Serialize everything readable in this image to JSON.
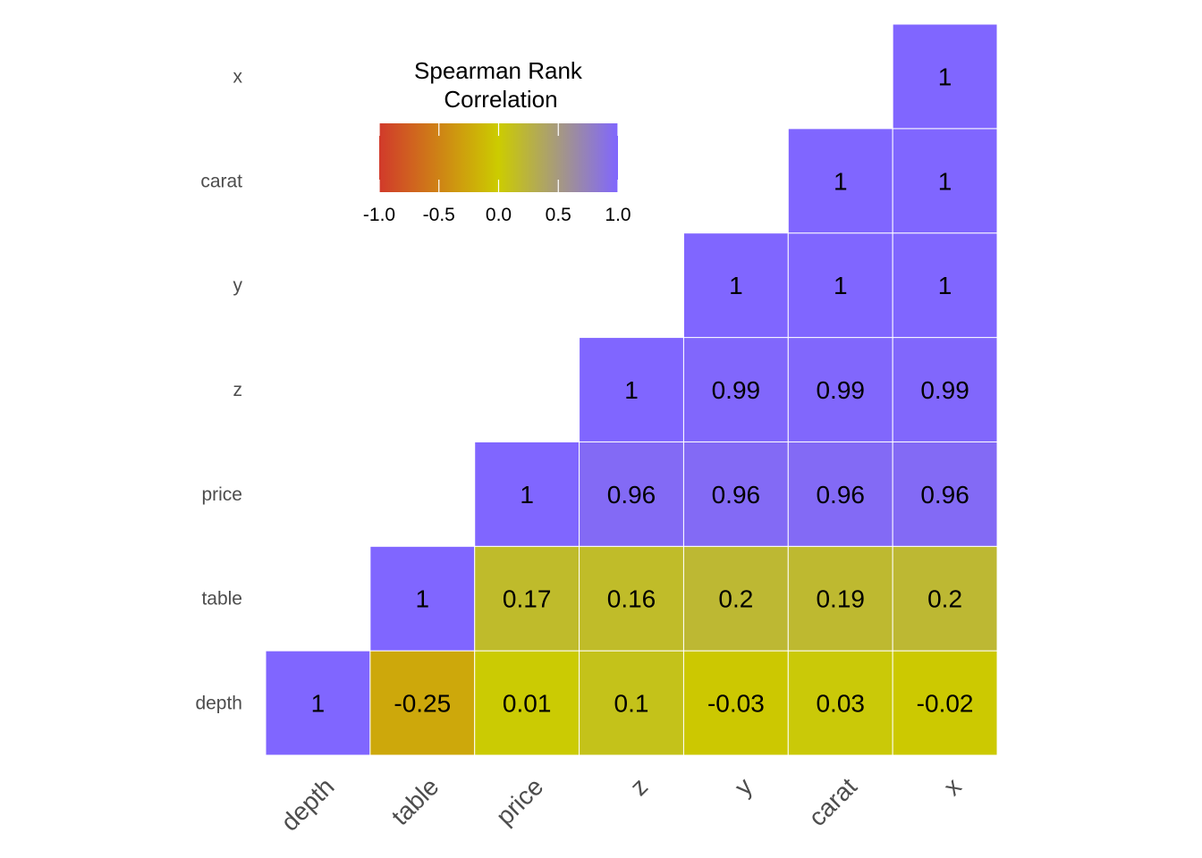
{
  "chart_data": {
    "type": "heatmap",
    "variables": [
      "depth",
      "table",
      "price",
      "z",
      "y",
      "carat",
      "x"
    ],
    "x_ticks": [
      "depth",
      "table",
      "price",
      "z",
      "y",
      "carat",
      "x"
    ],
    "y_ticks_top_to_bottom": [
      "x",
      "carat",
      "y",
      "z",
      "price",
      "table",
      "depth"
    ],
    "cells": [
      {
        "x": "depth",
        "y": "depth",
        "value": 1,
        "label": "1"
      },
      {
        "x": "table",
        "y": "depth",
        "value": -0.25,
        "label": "-0.25"
      },
      {
        "x": "price",
        "y": "depth",
        "value": 0.01,
        "label": "0.01"
      },
      {
        "x": "z",
        "y": "depth",
        "value": 0.1,
        "label": "0.1"
      },
      {
        "x": "y",
        "y": "depth",
        "value": -0.03,
        "label": "-0.03"
      },
      {
        "x": "carat",
        "y": "depth",
        "value": 0.03,
        "label": "0.03"
      },
      {
        "x": "x",
        "y": "depth",
        "value": -0.02,
        "label": "-0.02"
      },
      {
        "x": "table",
        "y": "table",
        "value": 1,
        "label": "1"
      },
      {
        "x": "price",
        "y": "table",
        "value": 0.17,
        "label": "0.17"
      },
      {
        "x": "z",
        "y": "table",
        "value": 0.16,
        "label": "0.16"
      },
      {
        "x": "y",
        "y": "table",
        "value": 0.2,
        "label": "0.2"
      },
      {
        "x": "carat",
        "y": "table",
        "value": 0.19,
        "label": "0.19"
      },
      {
        "x": "x",
        "y": "table",
        "value": 0.2,
        "label": "0.2"
      },
      {
        "x": "price",
        "y": "price",
        "value": 1,
        "label": "1"
      },
      {
        "x": "z",
        "y": "price",
        "value": 0.96,
        "label": "0.96"
      },
      {
        "x": "y",
        "y": "price",
        "value": 0.96,
        "label": "0.96"
      },
      {
        "x": "carat",
        "y": "price",
        "value": 0.96,
        "label": "0.96"
      },
      {
        "x": "x",
        "y": "price",
        "value": 0.96,
        "label": "0.96"
      },
      {
        "x": "z",
        "y": "z",
        "value": 1,
        "label": "1"
      },
      {
        "x": "y",
        "y": "z",
        "value": 0.99,
        "label": "0.99"
      },
      {
        "x": "carat",
        "y": "z",
        "value": 0.99,
        "label": "0.99"
      },
      {
        "x": "x",
        "y": "z",
        "value": 0.99,
        "label": "0.99"
      },
      {
        "x": "y",
        "y": "y",
        "value": 1,
        "label": "1"
      },
      {
        "x": "carat",
        "y": "y",
        "value": 1,
        "label": "1"
      },
      {
        "x": "x",
        "y": "y",
        "value": 1,
        "label": "1"
      },
      {
        "x": "carat",
        "y": "carat",
        "value": 1,
        "label": "1"
      },
      {
        "x": "x",
        "y": "carat",
        "value": 1,
        "label": "1"
      },
      {
        "x": "x",
        "y": "x",
        "value": 1,
        "label": "1"
      }
    ],
    "legend": {
      "title_lines": [
        "Spearman Rank",
        "Correlation"
      ],
      "placement": "top-left",
      "ticks": [
        -1.0,
        -0.5,
        0.0,
        0.5,
        1.0
      ],
      "tick_labels": [
        "-1.0",
        "-0.5",
        "0.0",
        "0.5",
        "1.0"
      ],
      "range": [
        -1,
        1
      ],
      "colors": {
        "low": "#d13a2b",
        "mid": "#cccc00",
        "high": "#8066ff"
      }
    },
    "xlabel": "",
    "ylabel": "",
    "grid": false
  }
}
